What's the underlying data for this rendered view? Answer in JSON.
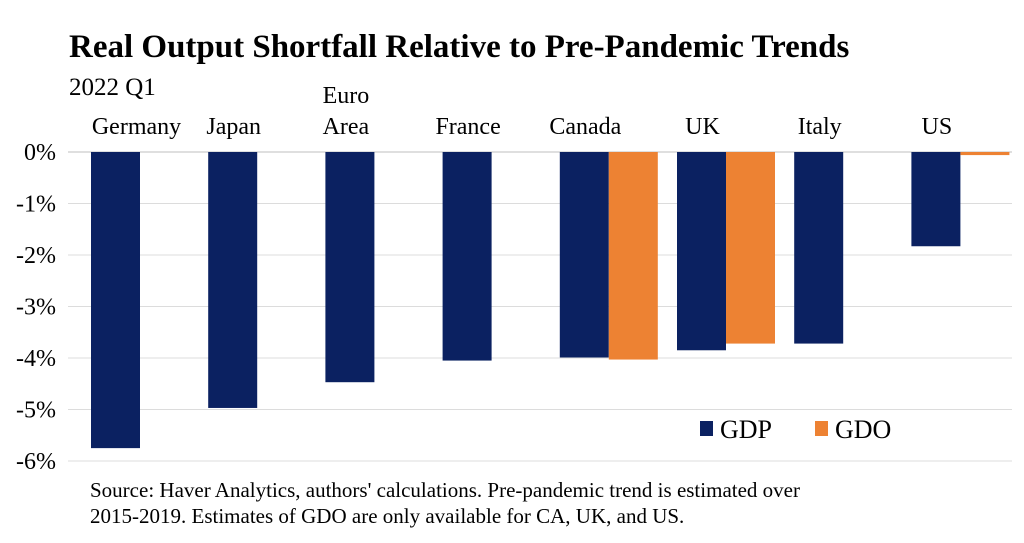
{
  "chart_data": {
    "type": "bar",
    "title": "Real Output Shortfall Relative to Pre-Pandemic Trends",
    "subtitle": "2022 Q1",
    "categories": [
      [
        "Germany"
      ],
      [
        "Japan"
      ],
      [
        "Euro",
        "Area"
      ],
      [
        "France"
      ],
      [
        "Canada"
      ],
      [
        "UK"
      ],
      [
        "Italy"
      ],
      [
        "US"
      ]
    ],
    "series": [
      {
        "name": "GDP",
        "color": "#0b2161",
        "values": [
          -5.75,
          -4.97,
          -4.47,
          -4.05,
          -3.99,
          -3.85,
          -3.72,
          -1.83
        ]
      },
      {
        "name": "GDO",
        "color": "#ed8233",
        "values": [
          null,
          null,
          null,
          null,
          -4.03,
          -3.72,
          null,
          -0.06
        ]
      }
    ],
    "y_ticks": [
      "0%",
      "-1%",
      "-2%",
      "-3%",
      "-4%",
      "-5%",
      "-6%"
    ],
    "ylim": [
      -6,
      0
    ],
    "grid": true,
    "legend_position": "bottom-right",
    "source": [
      "Source: Haver Analytics, authors' calculations. Pre-pandemic trend is estimated over",
      "2015-2019. Estimates of GDO are only available for CA, UK, and US."
    ]
  }
}
